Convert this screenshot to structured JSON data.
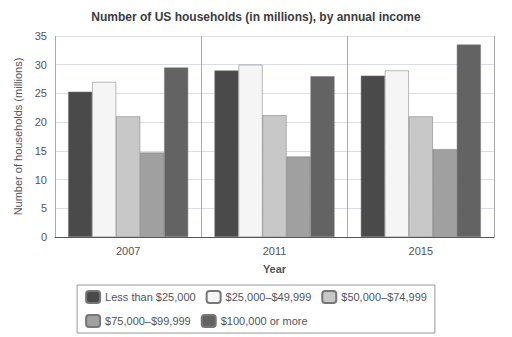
{
  "chart_data": {
    "type": "bar",
    "title": "Number of US households (in millions), by annual income",
    "xlabel": "Year",
    "ylabel": "Number of households (millions)",
    "categories": [
      "2007",
      "2011",
      "2015"
    ],
    "series": [
      {
        "name": "Less than $25,000",
        "color": "#4a4a4a",
        "values": [
          25.3,
          29.0,
          28.1
        ]
      },
      {
        "name": "$25,000–$49,999",
        "color": "#f5f5f5",
        "values": [
          27.0,
          30.0,
          29.0
        ]
      },
      {
        "name": "$50,000–$74,999",
        "color": "#c8c8c8",
        "values": [
          21.0,
          21.2,
          21.0
        ]
      },
      {
        "name": "$75,000–$99,999",
        "color": "#a0a0a0",
        "values": [
          14.7,
          14.0,
          15.3
        ]
      },
      {
        "name": "$100,000 or more",
        "color": "#636363",
        "values": [
          29.5,
          28.0,
          33.5
        ]
      }
    ],
    "ylim": [
      0,
      35
    ],
    "yticks": [
      0,
      5,
      10,
      15,
      20,
      25,
      30,
      35
    ],
    "grid": true,
    "legend": "bottom"
  }
}
